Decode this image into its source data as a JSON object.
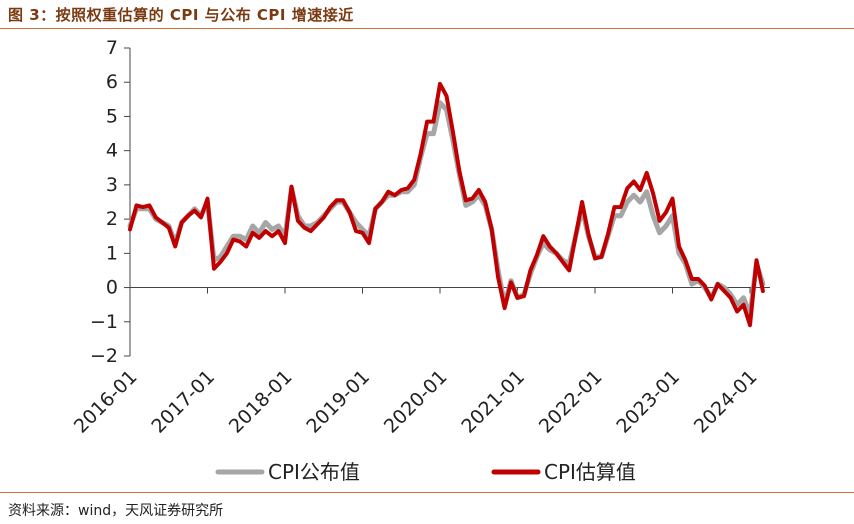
{
  "title": "图 3：按照权重估算的 CPI 与公布 CPI 增速接近",
  "source": "资料来源：wind，天风证券研究所",
  "chart_data": {
    "type": "line",
    "title": "图 3：按照权重估算的 CPI 与公布 CPI 增速接近",
    "xlabel": "",
    "ylabel": "",
    "ylim": [
      -2,
      7
    ],
    "yticks": [
      "7",
      "6",
      "5",
      "4",
      "3",
      "2",
      "1",
      "0",
      "−1",
      "−2"
    ],
    "xticks": [
      "2016-01",
      "2017-01",
      "2018-01",
      "2019-01",
      "2020-01",
      "2021-01",
      "2022-01",
      "2023-01",
      "2024-01"
    ],
    "grid": false,
    "legend": "bottom",
    "series": [
      {
        "name": "CPI公布值",
        "color": "#a6a6a6",
        "values": [
          1.8,
          2.3,
          2.3,
          2.3,
          2.0,
          1.9,
          1.8,
          1.3,
          1.9,
          2.1,
          2.3,
          2.1,
          2.5,
          0.8,
          0.9,
          1.2,
          1.5,
          1.5,
          1.4,
          1.8,
          1.6,
          1.9,
          1.7,
          1.8,
          1.5,
          2.9,
          2.1,
          1.8,
          1.8,
          1.9,
          2.1,
          2.3,
          2.5,
          2.5,
          2.2,
          1.9,
          1.7,
          1.5,
          2.3,
          2.5,
          2.7,
          2.7,
          2.8,
          2.8,
          3.0,
          3.8,
          4.5,
          4.5,
          5.4,
          5.2,
          4.3,
          3.3,
          2.4,
          2.5,
          2.7,
          2.4,
          1.7,
          0.5,
          -0.5,
          0.2,
          -0.3,
          -0.2,
          0.4,
          0.9,
          1.3,
          1.1,
          1.0,
          0.8,
          0.7,
          1.5,
          2.3,
          1.5,
          0.9,
          0.9,
          1.5,
          2.1,
          2.1,
          2.5,
          2.7,
          2.5,
          2.8,
          2.1,
          1.6,
          1.8,
          2.1,
          1.0,
          0.7,
          0.1,
          0.2,
          0.0,
          -0.3,
          0.1,
          0.0,
          -0.2,
          -0.5,
          -0.3,
          -0.8,
          0.7,
          0.1
        ],
        "values_note": ""
      },
      {
        "name": "CPI估算值",
        "color": "#c00000",
        "values": [
          1.7,
          2.4,
          2.35,
          2.4,
          2.05,
          1.9,
          1.75,
          1.2,
          1.9,
          2.1,
          2.25,
          2.05,
          2.6,
          0.55,
          0.75,
          1.0,
          1.4,
          1.35,
          1.2,
          1.6,
          1.45,
          1.65,
          1.5,
          1.65,
          1.3,
          2.95,
          1.95,
          1.75,
          1.65,
          1.85,
          2.05,
          2.35,
          2.55,
          2.55,
          2.2,
          1.65,
          1.6,
          1.3,
          2.3,
          2.5,
          2.8,
          2.7,
          2.85,
          2.9,
          3.15,
          3.9,
          4.85,
          4.85,
          5.95,
          5.6,
          4.55,
          3.4,
          2.55,
          2.6,
          2.85,
          2.5,
          1.7,
          0.3,
          -0.6,
          0.15,
          -0.3,
          -0.25,
          0.5,
          0.95,
          1.5,
          1.2,
          1.0,
          0.75,
          0.5,
          1.5,
          2.5,
          1.55,
          0.85,
          0.9,
          1.55,
          2.35,
          2.35,
          2.9,
          3.1,
          2.85,
          3.35,
          2.75,
          1.95,
          2.2,
          2.6,
          1.2,
          0.8,
          0.25,
          0.25,
          0.05,
          -0.35,
          0.1,
          -0.1,
          -0.3,
          -0.7,
          -0.5,
          -1.1,
          0.8,
          -0.1
        ]
      }
    ]
  }
}
